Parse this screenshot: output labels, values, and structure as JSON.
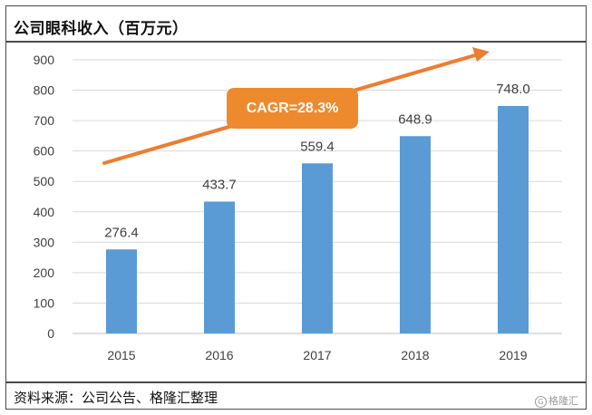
{
  "title": "公司眼科收入（百万元）",
  "source": "资料来源：公司公告、格隆汇整理",
  "watermark": "格隆汇",
  "annotation": "CAGR=28.3%",
  "colors": {
    "bar": "#5b9bd5",
    "arrow": "#ed7d31",
    "grid": "#d9d9d9",
    "label": "#404040"
  },
  "chart_data": {
    "type": "bar",
    "categories": [
      "2015",
      "2016",
      "2017",
      "2018",
      "2019"
    ],
    "values": [
      276.4,
      433.7,
      559.4,
      648.9,
      748.0
    ],
    "value_labels": [
      "276.4",
      "433.7",
      "559.4",
      "648.9",
      "748.0"
    ],
    "yticks": [
      0,
      100,
      200,
      300,
      400,
      500,
      600,
      700,
      800,
      900
    ],
    "ylim": [
      0,
      900
    ],
    "grid": true,
    "legend": "none"
  }
}
